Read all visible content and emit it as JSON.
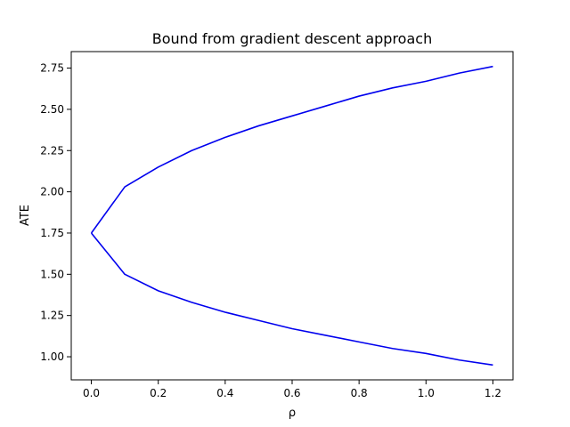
{
  "chart_data": {
    "type": "line",
    "title": "Bound from gradient descent approach",
    "xlabel": "ρ",
    "ylabel": "ATE",
    "xlim": [
      -0.06,
      1.26
    ],
    "ylim": [
      0.86,
      2.85
    ],
    "xticks": [
      0.0,
      0.2,
      0.4,
      0.6,
      0.8,
      1.0,
      1.2
    ],
    "xtick_labels": [
      "0.0",
      "0.2",
      "0.4",
      "0.6",
      "0.8",
      "1.0",
      "1.2"
    ],
    "yticks": [
      1.0,
      1.25,
      1.5,
      1.75,
      2.0,
      2.25,
      2.5,
      2.75
    ],
    "ytick_labels": [
      "1.00",
      "1.25",
      "1.50",
      "1.75",
      "2.00",
      "2.25",
      "2.50",
      "2.75"
    ],
    "grid": false,
    "series": [
      {
        "color": "#0000ee",
        "x": [
          0.0,
          0.1,
          0.2,
          0.3,
          0.4,
          0.5,
          0.6,
          0.7,
          0.8,
          0.9,
          1.0,
          1.1,
          1.2
        ],
        "y": [
          1.75,
          2.03,
          2.15,
          2.25,
          2.33,
          2.4,
          2.46,
          2.52,
          2.58,
          2.63,
          2.67,
          2.72,
          2.76
        ]
      },
      {
        "color": "#0000ee",
        "x": [
          0.0,
          0.1,
          0.2,
          0.3,
          0.4,
          0.5,
          0.6,
          0.7,
          0.8,
          0.9,
          1.0,
          1.1,
          1.2
        ],
        "y": [
          1.75,
          1.5,
          1.4,
          1.33,
          1.27,
          1.22,
          1.17,
          1.13,
          1.09,
          1.05,
          1.02,
          0.98,
          0.95
        ]
      }
    ]
  }
}
